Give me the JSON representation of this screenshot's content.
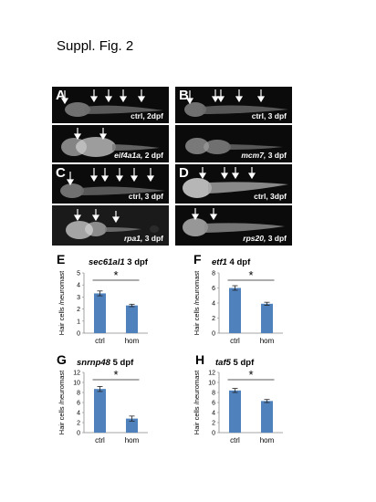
{
  "figure": {
    "title": "Suppl. Fig. 2"
  },
  "panels": [
    {
      "letter": "A",
      "top_caption": {
        "gene": "",
        "stage": "ctrl, 2dpf"
      },
      "bottom_caption": {
        "gene": "eif4a1a,",
        "stage": "2 dpf"
      }
    },
    {
      "letter": "B",
      "top_caption": {
        "gene": "",
        "stage": "ctrl,  3 dpf"
      },
      "bottom_caption": {
        "gene": "mcm7,",
        "stage": "3 dpf"
      }
    },
    {
      "letter": "C",
      "top_caption": {
        "gene": "",
        "stage": "ctrl,  3 dpf"
      },
      "bottom_caption": {
        "gene": "rpa1,",
        "stage": "3 dpf"
      }
    },
    {
      "letter": "D",
      "top_caption": {
        "gene": "",
        "stage": "ctrl,  3dpf"
      },
      "bottom_caption": {
        "gene": "rps20,",
        "stage": "3 dpf"
      }
    }
  ],
  "chart_data": [
    {
      "letter": "E",
      "type": "bar",
      "gene": "sec61al1",
      "stage": "3 dpf",
      "ylabel": "Hair cells /neuromast",
      "categories": [
        "ctrl",
        "hom"
      ],
      "values": [
        3.3,
        2.3
      ],
      "errors": [
        0.2,
        0.1
      ],
      "ylim": [
        0,
        5
      ],
      "yticks": [
        0,
        1,
        2,
        3,
        4,
        5
      ],
      "significance": "*",
      "color": "#4f81bd"
    },
    {
      "letter": "F",
      "type": "bar",
      "gene": "etf1",
      "stage": "4 dpf",
      "ylabel": "Hair cells /neuromast",
      "categories": [
        "ctrl",
        "hom"
      ],
      "values": [
        6.0,
        3.9
      ],
      "errors": [
        0.3,
        0.2
      ],
      "ylim": [
        0,
        8
      ],
      "yticks": [
        0,
        2,
        4,
        6,
        8
      ],
      "significance": "*",
      "color": "#4f81bd"
    },
    {
      "letter": "G",
      "type": "bar",
      "gene": "snrnp48",
      "stage": "5 dpf",
      "ylabel": "Hair cells /neuromast",
      "categories": [
        "ctrl",
        "hom"
      ],
      "values": [
        8.7,
        2.8
      ],
      "errors": [
        0.5,
        0.5
      ],
      "ylim": [
        0,
        12
      ],
      "yticks": [
        0,
        2,
        4,
        6,
        8,
        10,
        12
      ],
      "significance": "*",
      "color": "#4f81bd"
    },
    {
      "letter": "H",
      "type": "bar",
      "gene": "taf5",
      "stage": "5 dpf",
      "ylabel": "Hair cells /neuromast",
      "categories": [
        "ctrl",
        "hom"
      ],
      "values": [
        8.4,
        6.3
      ],
      "errors": [
        0.4,
        0.3
      ],
      "ylim": [
        0,
        12
      ],
      "yticks": [
        0,
        2,
        4,
        6,
        8,
        10,
        12
      ],
      "significance": "*",
      "color": "#4f81bd"
    }
  ]
}
